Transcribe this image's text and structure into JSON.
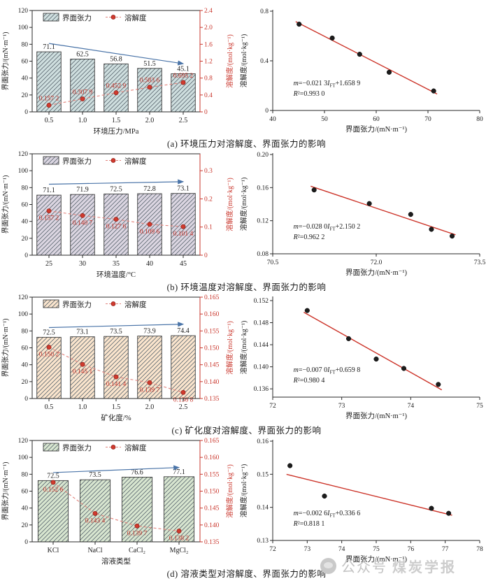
{
  "figure": {
    "captions": [
      "(a) 环境压力对溶解度、界面张力的影响",
      "(b) 环境温度对溶解度、界面张力的影响",
      "(c) 矿化度对溶解度、界面张力的影响",
      "(d) 溶液类型对溶解度、界面张力的影响"
    ],
    "watermark": {
      "prefix": "公众号",
      "name": "煤炭学报"
    },
    "colors": {
      "accent_red": "#c9352b",
      "dot_red": "#d03a2e",
      "dash_red": "#e2837c",
      "arrow_blue": "#4a74a8",
      "hatch": "#5b6770",
      "axis": "#2a2a2a",
      "point_black": "#1c1c1c",
      "watermark_gray": "#c3c3c3"
    }
  },
  "chart_data": [
    {
      "type": "bar",
      "panel": "a",
      "legend": [
        "界面张力",
        "溶解度"
      ],
      "categories": [
        "0.5",
        "1.0",
        "1.5",
        "2.0",
        "2.5"
      ],
      "series": [
        {
          "name": "界面张力",
          "kind": "bar",
          "axis": "left",
          "values": [
            71.1,
            62.5,
            56.8,
            51.5,
            45.1
          ],
          "labels": [
            "71.1",
            "62.5",
            "56.8",
            "51.5",
            "45.1"
          ]
        },
        {
          "name": "溶解度",
          "kind": "line",
          "axis": "right",
          "values": [
            0.1572,
            0.3079,
            0.4529,
            0.5836,
            0.6952
          ],
          "labels": [
            "0.157 2",
            "0.307 9",
            "0.452 9",
            "0.583 6",
            "0.695 2"
          ]
        }
      ],
      "xlabel": "环境压力/MPa",
      "ylabel_left": "界面张力/(mN·m⁻¹)",
      "ylabel_right": "溶解度/(mol·kg⁻¹)",
      "ylim_left": [
        0,
        120
      ],
      "yticks_left": [
        "0",
        "20",
        "40",
        "60",
        "80",
        "100",
        "120"
      ],
      "ylim_right": [
        0,
        2.4
      ],
      "yticks_right": [
        "0",
        "0.4",
        "0.8",
        "1.2",
        "1.6",
        "2.0",
        "2.4"
      ],
      "bar_color": "#cfdfdf",
      "value_label_side": "above",
      "trend_arrow": {
        "from": 81,
        "to": 57
      }
    },
    {
      "type": "scatter",
      "panel": "a",
      "x": [
        45.1,
        51.5,
        56.8,
        62.5,
        71.1
      ],
      "y": [
        0.6952,
        0.5836,
        0.4529,
        0.3079,
        0.1572
      ],
      "xlabel": "界面张力/(mN·m⁻¹)",
      "ylabel": "溶解度/(mol·kg⁻¹)",
      "xlim": [
        40,
        80
      ],
      "xticks": [
        "40",
        "50",
        "60",
        "70",
        "80"
      ],
      "ylim": [
        0,
        0.8
      ],
      "yticks": [
        "0",
        "0.4",
        "0.8"
      ],
      "fit": {
        "slope": -0.0213,
        "intercept": 1.6589
      },
      "equation": {
        "lhs": "m",
        "mid": "=−0.021 3",
        "var": "I",
        "sub": "FT",
        "post": "+1.658 9"
      },
      "r2": "R²=0.993 0"
    },
    {
      "type": "bar",
      "panel": "b",
      "legend": [
        "界面张力",
        "溶解度"
      ],
      "categories": [
        "25",
        "30",
        "35",
        "40",
        "45"
      ],
      "series": [
        {
          "name": "界面张力",
          "kind": "bar",
          "axis": "left",
          "values": [
            71.1,
            71.9,
            72.5,
            72.8,
            73.1
          ],
          "labels": [
            "71.1",
            "71.9",
            "72.5",
            "72.8",
            "73.1"
          ]
        },
        {
          "name": "溶解度",
          "kind": "line",
          "axis": "right",
          "values": [
            0.1572,
            0.1407,
            0.1276,
            0.1096,
            0.1014
          ],
          "labels": [
            "0.157 2",
            "0.140 7",
            "0.127 6",
            "0.109 6",
            "0.101 4"
          ]
        }
      ],
      "xlabel": "环境温度/°C",
      "ylabel_left": "界面张力/(mN·m⁻¹)",
      "ylabel_right": "溶解度/(mol·kg⁻¹)",
      "ylim_left": [
        0,
        120
      ],
      "yticks_left": [
        "0",
        "20",
        "40",
        "60",
        "80",
        "100",
        "120"
      ],
      "ylim_right": [
        0,
        0.36
      ],
      "yticks_right": [
        "0",
        "0.1",
        "0.2",
        "0.3"
      ],
      "bar_color": "#dcd6e2",
      "value_label_side": "below",
      "trend_arrow": {
        "from": 84,
        "to": 87
      }
    },
    {
      "type": "scatter",
      "panel": "b",
      "x": [
        71.1,
        71.9,
        72.5,
        72.8,
        73.1
      ],
      "y": [
        0.1572,
        0.1407,
        0.1276,
        0.1096,
        0.1014
      ],
      "xlabel": "界面张力/(mN·m⁻¹)",
      "ylabel": "溶解度/(mol·kg⁻¹)",
      "xlim": [
        70.5,
        73.5
      ],
      "xticks": [
        "70.5",
        "72.0",
        "73.5"
      ],
      "ylim": [
        0.08,
        0.2
      ],
      "yticks": [
        "0.08",
        "0.12",
        "0.16",
        "0.20"
      ],
      "fit": {
        "slope": -0.028,
        "intercept": 2.1502
      },
      "equation": {
        "lhs": "m",
        "mid": "=−0.028 0",
        "var": "I",
        "sub": "FT",
        "post": "+2.150 2"
      },
      "r2": "R²=0.962 2"
    },
    {
      "type": "bar",
      "panel": "c",
      "legend": [
        "界面张力",
        "溶解度"
      ],
      "categories": [
        "0.5",
        "1.0",
        "1.5",
        "2.0",
        "2.5"
      ],
      "series": [
        {
          "name": "界面张力",
          "kind": "bar",
          "axis": "left",
          "values": [
            72.5,
            73.1,
            73.5,
            73.9,
            74.4
          ],
          "labels": [
            "72.5",
            "73.1",
            "73.5",
            "73.9",
            "74.4"
          ]
        },
        {
          "name": "溶解度",
          "kind": "line",
          "axis": "right",
          "values": [
            0.1502,
            0.1451,
            0.1414,
            0.1397,
            0.1368
          ],
          "labels": [
            "0.150 2",
            "0.145 1",
            "0.141 4",
            "0.139 7",
            "0.136 8"
          ]
        }
      ],
      "xlabel": "矿化度/%",
      "ylabel_left": "界面张力/(mN·m⁻¹)",
      "ylabel_right": "溶解度/(mol·kg⁻¹)",
      "ylim_left": [
        0,
        120
      ],
      "yticks_left": [
        "0",
        "20",
        "40",
        "60",
        "80",
        "100",
        "120"
      ],
      "ylim_right": [
        0.135,
        0.165
      ],
      "yticks_right": [
        "0.135",
        "0.140",
        "0.145",
        "0.150",
        "0.155",
        "0.160",
        "0.165"
      ],
      "bar_color": "#fbe5cd",
      "value_label_side": "below",
      "trend_arrow": {
        "from": 84,
        "to": 88
      }
    },
    {
      "type": "scatter",
      "panel": "c",
      "x": [
        72.5,
        73.1,
        73.5,
        73.9,
        74.4
      ],
      "y": [
        0.1502,
        0.1451,
        0.1414,
        0.1397,
        0.1368
      ],
      "xlabel": "界面张力/(mN·m⁻¹)",
      "ylabel": "溶解度/(mol·kg⁻¹)",
      "xlim": [
        72,
        75
      ],
      "xticks": [
        "72",
        "73",
        "74",
        "75"
      ],
      "ylim": [
        0.1345,
        0.1525
      ],
      "yticks": [
        "0.136",
        "0.140",
        "0.144",
        "0.148",
        "0.152"
      ],
      "fit": {
        "slope": -0.007,
        "intercept": 0.6598
      },
      "equation": {
        "lhs": "m",
        "mid": "=−0.007 0",
        "var": "I",
        "sub": "FT",
        "post": "+0.659 8"
      },
      "r2": "R²=0.980 4"
    },
    {
      "type": "bar",
      "panel": "d",
      "legend": [
        "界面张力",
        "溶解度"
      ],
      "categories": [
        "KCl",
        "NaCl",
        "CaCl₂",
        "MgCl₂"
      ],
      "series": [
        {
          "name": "界面张力",
          "kind": "bar",
          "axis": "left",
          "values": [
            72.5,
            73.5,
            76.6,
            77.1
          ],
          "labels": [
            "72.5",
            "73.5",
            "76.6",
            "77.1"
          ]
        },
        {
          "name": "溶解度",
          "kind": "line",
          "axis": "right",
          "values": [
            0.1526,
            0.1434,
            0.1397,
            0.1382
          ],
          "labels": [
            "0.152 6",
            "0.143 4",
            "0.139 7",
            "0.138 2"
          ]
        }
      ],
      "xlabel": "溶液类型",
      "ylabel_left": "界面张力/(mN·m⁻¹)",
      "ylabel_right": "溶解度/(mol·kg⁻¹)",
      "ylim_left": [
        0,
        120
      ],
      "yticks_left": [
        "0",
        "20",
        "40",
        "60",
        "80",
        "100",
        "120"
      ],
      "ylim_right": [
        0.135,
        0.165
      ],
      "yticks_right": [
        "0.135",
        "0.140",
        "0.145",
        "0.150",
        "0.155",
        "0.160",
        "0.165"
      ],
      "bar_color": "#d8e6d0",
      "value_label_side": "below",
      "trend_arrow": {
        "from": 82,
        "to": 88
      }
    },
    {
      "type": "scatter",
      "panel": "d",
      "x": [
        72.5,
        73.5,
        76.6,
        77.1
      ],
      "y": [
        0.1526,
        0.1434,
        0.1397,
        0.1382
      ],
      "xlabel": "界面张力/(mN·m⁻¹)",
      "ylabel": "溶解度/(mol·kg⁻¹)",
      "xlim": [
        72,
        78
      ],
      "xticks": [
        "72",
        "73",
        "74",
        "75",
        "76",
        "77",
        "78"
      ],
      "ylim": [
        0.13,
        0.16
      ],
      "yticks": [
        "0.13",
        "0.14",
        "0.15",
        "0.16"
      ],
      "fit": {
        "slope": -0.0026,
        "intercept": 0.3366
      },
      "equation": {
        "lhs": "m",
        "mid": "=−0.002 6",
        "var": "I",
        "sub": "FT",
        "post": "+0.336 6"
      },
      "r2": "R²=0.818 1"
    }
  ]
}
